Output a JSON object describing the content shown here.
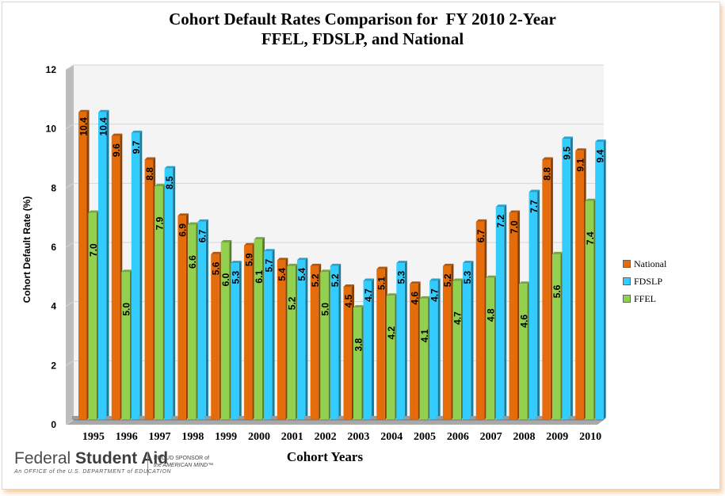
{
  "chart_data": {
    "type": "bar",
    "title": [
      "Cohort Default Rates Comparison for  FY 2010 2-Year",
      "FFEL, FDSLP, and National"
    ],
    "xlabel": "Cohort Years",
    "ylabel": "Cohort Default Rate (%)",
    "ylim": [
      0,
      12
    ],
    "yticks": [
      0,
      2,
      4,
      6,
      8,
      10,
      12
    ],
    "grid": true,
    "legend_position": "right",
    "categories": [
      "1995",
      "1996",
      "1997",
      "1998",
      "1999",
      "2000",
      "2001",
      "2002",
      "2003",
      "2004",
      "2005",
      "2006",
      "2007",
      "2008",
      "2009",
      "2010"
    ],
    "series": [
      {
        "name": "National",
        "color": "#e46c0a",
        "values": [
          10.4,
          9.6,
          8.8,
          6.9,
          5.6,
          5.9,
          5.4,
          5.2,
          4.5,
          5.1,
          4.6,
          5.2,
          6.7,
          7.0,
          8.8,
          9.1
        ]
      },
      {
        "name": "FFEL",
        "color": "#92d050",
        "values": [
          7.0,
          5.0,
          7.9,
          6.6,
          6.0,
          6.1,
          5.2,
          5.0,
          3.8,
          4.2,
          4.1,
          4.7,
          4.8,
          4.6,
          5.6,
          7.4
        ]
      },
      {
        "name": "FDSLP",
        "color": "#33ccff",
        "values": [
          10.4,
          9.7,
          8.5,
          6.7,
          5.3,
          5.7,
          5.4,
          5.2,
          4.7,
          5.3,
          4.7,
          5.3,
          7.2,
          7.7,
          9.5,
          9.4
        ]
      }
    ],
    "legend_order": [
      "National",
      "FDSLP",
      "FFEL"
    ]
  },
  "logo": {
    "name_light": "Federal ",
    "name_bold": "Student Aid",
    "tagline": "An OFFICE of the U.S. DEPARTMENT of EDUCATION",
    "sponsor_line1": "PROUD SPONSOR of",
    "sponsor_line2": "the AMERICAN MIND™"
  }
}
